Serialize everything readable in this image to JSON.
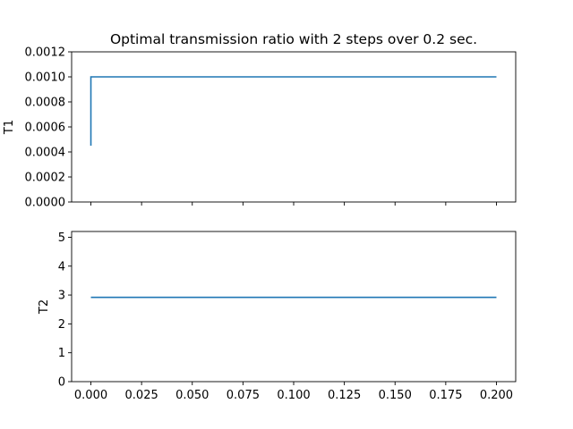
{
  "chart_data": [
    {
      "type": "line",
      "title": "Optimal transmission ratio with 2 steps over 0.2 sec.",
      "xlabel": "",
      "ylabel": "T1",
      "xlim": [
        -0.0095,
        0.2095
      ],
      "ylim": [
        0,
        0.0012
      ],
      "yticks": [
        "0.0000",
        "0.0002",
        "0.0004",
        "0.0006",
        "0.0008",
        "0.0010",
        "0.0012"
      ],
      "yticks_values": [
        0,
        0.0002,
        0.0004,
        0.0006,
        0.0008,
        0.001,
        0.0012
      ],
      "xticks_values": [
        0,
        0.025,
        0.05,
        0.075,
        0.1,
        0.125,
        0.15,
        0.175,
        0.2
      ],
      "show_xtick_labels": false,
      "grid": false,
      "color": "#1f77b4",
      "series": [
        {
          "x": [
            0,
            0,
            0.2
          ],
          "y": [
            0.00045,
            0.001,
            0.001
          ]
        }
      ]
    },
    {
      "type": "line",
      "title": "",
      "xlabel": "",
      "ylabel": "T2",
      "xlim": [
        -0.0095,
        0.2095
      ],
      "ylim": [
        0,
        5.2
      ],
      "yticks": [
        "0",
        "1",
        "2",
        "3",
        "4",
        "5"
      ],
      "yticks_values": [
        0,
        1,
        2,
        3,
        4,
        5
      ],
      "xticks": [
        "0.000",
        "0.025",
        "0.050",
        "0.075",
        "0.100",
        "0.125",
        "0.150",
        "0.175",
        "0.200"
      ],
      "xticks_values": [
        0,
        0.025,
        0.05,
        0.075,
        0.1,
        0.125,
        0.15,
        0.175,
        0.2
      ],
      "show_xtick_labels": true,
      "grid": false,
      "color": "#1f77b4",
      "series": [
        {
          "x": [
            0,
            0.2
          ],
          "y": [
            2.92,
            2.92
          ]
        }
      ]
    }
  ]
}
